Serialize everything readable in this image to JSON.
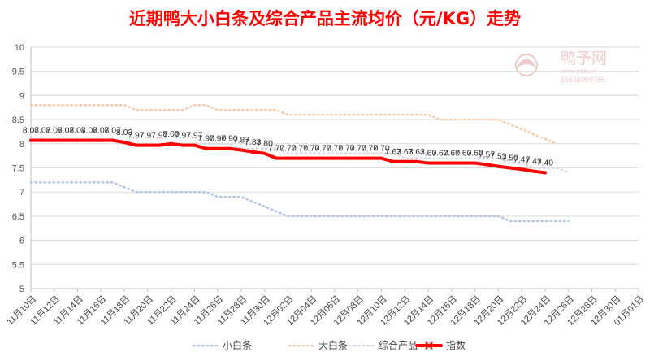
{
  "chart_data": {
    "type": "line",
    "title": "近期鸭大小白条及综合产品主流均价（元/KG）走势",
    "xlabel": "",
    "ylabel": "",
    "ylim": [
      5,
      10
    ],
    "yticks": [
      "5",
      "5.5",
      "6",
      "6.5",
      "7",
      "7.5",
      "8",
      "8.5",
      "9",
      "9.5",
      "10"
    ],
    "grid": true,
    "legend_position": "bottom",
    "x_axis_labels": [
      "11月10日",
      "11月12日",
      "11月14日",
      "11月16日",
      "11月18日",
      "11月20日",
      "11月22日",
      "11月24日",
      "11月26日",
      "11月28日",
      "11月30日",
      "12月02日",
      "12月04日",
      "12月06日",
      "12月08日",
      "12月10日",
      "12月12日",
      "12月14日",
      "12月16日",
      "12月18日",
      "12月20日",
      "12月22日",
      "12月24日",
      "12月26日",
      "12月28日",
      "12月30日",
      "01月01日"
    ],
    "series": [
      {
        "name": "小白条",
        "color": "#b4c7e7",
        "style": "dotted",
        "values": [
          7.2,
          7.2,
          7.2,
          7.2,
          7.2,
          7.2,
          7.2,
          7.2,
          7.1,
          7.0,
          7.0,
          7.0,
          7.0,
          7.0,
          7.0,
          7.0,
          6.9,
          6.9,
          6.9,
          6.8,
          6.7,
          6.6,
          6.5,
          6.5,
          6.5,
          6.5,
          6.5,
          6.5,
          6.5,
          6.5,
          6.5,
          6.5,
          6.5,
          6.5,
          6.5,
          6.5,
          6.5,
          6.5,
          6.5,
          6.5,
          6.5,
          6.4,
          6.4,
          6.4,
          6.4,
          6.4,
          6.4
        ]
      },
      {
        "name": "大白条",
        "color": "#f8cbad",
        "style": "dotted",
        "values": [
          8.8,
          8.8,
          8.8,
          8.8,
          8.8,
          8.8,
          8.8,
          8.8,
          8.8,
          8.7,
          8.7,
          8.7,
          8.7,
          8.7,
          8.8,
          8.8,
          8.7,
          8.7,
          8.7,
          8.7,
          8.7,
          8.7,
          8.6,
          8.6,
          8.6,
          8.6,
          8.6,
          8.6,
          8.6,
          8.6,
          8.6,
          8.6,
          8.6,
          8.6,
          8.6,
          8.5,
          8.5,
          8.5,
          8.5,
          8.5,
          8.5,
          8.4,
          8.3,
          8.2,
          8.1,
          8.0,
          null
        ]
      },
      {
        "name": "综合产品",
        "color": "#d6dce5",
        "style": "dotted",
        "values": [
          8.1,
          8.1,
          8.1,
          8.1,
          8.1,
          8.1,
          8.1,
          8.1,
          8.0,
          8.0,
          8.0,
          8.0,
          8.0,
          8.0,
          8.0,
          8.0,
          8.0,
          8.0,
          7.9,
          7.9,
          7.9,
          7.9,
          7.8,
          7.8,
          7.8,
          7.8,
          7.8,
          7.8,
          7.8,
          7.8,
          7.8,
          7.8,
          7.7,
          7.7,
          7.7,
          7.7,
          7.7,
          7.7,
          7.7,
          7.7,
          7.7,
          7.6,
          7.6,
          7.5,
          7.5,
          7.5,
          7.4
        ]
      },
      {
        "name": "指数",
        "color": "#ff0000",
        "style": "solid",
        "values": [
          8.07,
          8.07,
          8.07,
          8.07,
          8.07,
          8.07,
          8.07,
          8.07,
          8.03,
          7.97,
          7.97,
          7.97,
          8.0,
          7.97,
          7.97,
          7.9,
          7.9,
          7.9,
          7.87,
          7.83,
          7.8,
          7.7,
          7.7,
          7.7,
          7.7,
          7.7,
          7.7,
          7.7,
          7.7,
          7.7,
          7.7,
          7.63,
          7.63,
          7.63,
          7.6,
          7.6,
          7.6,
          7.6,
          7.6,
          7.57,
          7.53,
          7.5,
          7.47,
          7.43,
          7.4
        ],
        "data_labels": [
          "8.07",
          "8.07",
          "8.07",
          "8.07",
          "8.07",
          "8.07",
          "8.07",
          "8.07",
          "8.03",
          "7.97",
          "7.97",
          "7.97",
          "8.00",
          "7.97",
          "7.97",
          "7.90",
          "7.90",
          "7.90",
          "7.87",
          "7.83",
          "7.80",
          "7.70",
          "7.70",
          "7.70",
          "7.70",
          "7.70",
          "7.70",
          "7.70",
          "7.70",
          "7.70",
          "7.70",
          "7.63",
          "7.63",
          "7.63",
          "7.60",
          "7.60",
          "7.60",
          "7.60",
          "7.60",
          "7.57",
          "7.53",
          "7.50",
          "7.47",
          "7.43",
          "7.40"
        ]
      }
    ]
  },
  "watermark": {
    "brand": "鸭予网",
    "url": "www.yazi.cn",
    "phone": "15131069765"
  }
}
